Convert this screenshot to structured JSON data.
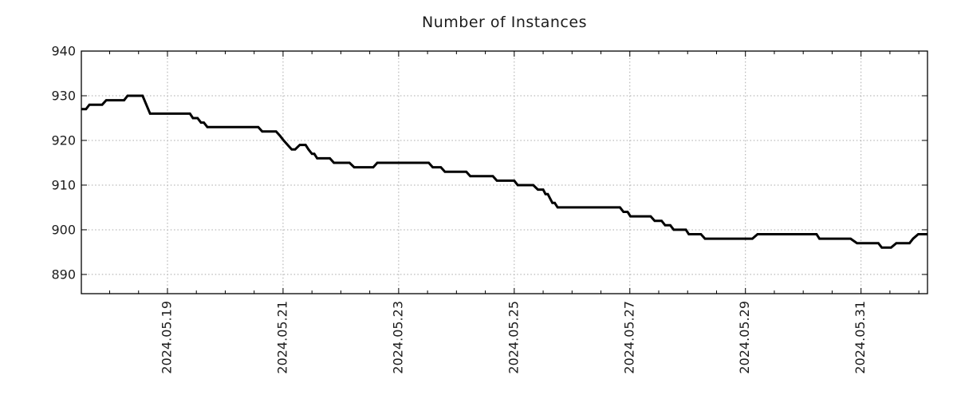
{
  "chart_data": {
    "type": "line",
    "title": "Number of Instances",
    "xlabel": "",
    "ylabel": "",
    "grid": true,
    "legend_position": "none",
    "x_axis": {
      "unit": "days relative to 2024-05-19 00:00",
      "range": [
        -1.49,
        13.15
      ],
      "major_ticks": [
        {
          "t": 0,
          "label": "2024.05.19"
        },
        {
          "t": 2,
          "label": "2024.05.21"
        },
        {
          "t": 4,
          "label": "2024.05.23"
        },
        {
          "t": 6,
          "label": "2024.05.25"
        },
        {
          "t": 8,
          "label": "2024.05.27"
        },
        {
          "t": 10,
          "label": "2024.05.29"
        },
        {
          "t": 12,
          "label": "2024.05.31"
        }
      ],
      "minor_tick_step": 0.5
    },
    "y_axis": {
      "range": [
        885.7,
        940
      ],
      "ticks": [
        890,
        900,
        910,
        920,
        930,
        940
      ]
    },
    "series": [
      {
        "name": "Number of Instances",
        "color": "#000000",
        "points": [
          [
            -1.49,
            927
          ],
          [
            -1.41,
            927
          ],
          [
            -1.35,
            928
          ],
          [
            -1.13,
            928
          ],
          [
            -1.06,
            929
          ],
          [
            -0.75,
            929
          ],
          [
            -0.69,
            930
          ],
          [
            -0.43,
            930
          ],
          [
            -0.3,
            926
          ],
          [
            0.39,
            926
          ],
          [
            0.44,
            925
          ],
          [
            0.52,
            925
          ],
          [
            0.58,
            924
          ],
          [
            0.63,
            924
          ],
          [
            0.69,
            923
          ],
          [
            1.57,
            923
          ],
          [
            1.64,
            922
          ],
          [
            1.88,
            922
          ],
          [
            1.95,
            921
          ],
          [
            2.01,
            920
          ],
          [
            2.08,
            919
          ],
          [
            2.15,
            918
          ],
          [
            2.21,
            918
          ],
          [
            2.29,
            919
          ],
          [
            2.39,
            919
          ],
          [
            2.44,
            918
          ],
          [
            2.5,
            917
          ],
          [
            2.54,
            917
          ],
          [
            2.59,
            916
          ],
          [
            2.81,
            916
          ],
          [
            2.88,
            915
          ],
          [
            3.15,
            915
          ],
          [
            3.23,
            914
          ],
          [
            3.56,
            914
          ],
          [
            3.63,
            915
          ],
          [
            4.52,
            915
          ],
          [
            4.59,
            914
          ],
          [
            4.73,
            914
          ],
          [
            4.8,
            913
          ],
          [
            5.17,
            913
          ],
          [
            5.24,
            912
          ],
          [
            5.63,
            912
          ],
          [
            5.7,
            911
          ],
          [
            6.0,
            911
          ],
          [
            6.06,
            910
          ],
          [
            6.33,
            910
          ],
          [
            6.41,
            909
          ],
          [
            6.5,
            909
          ],
          [
            6.54,
            908
          ],
          [
            6.58,
            908
          ],
          [
            6.62,
            907
          ],
          [
            6.66,
            906
          ],
          [
            6.7,
            906
          ],
          [
            6.75,
            905
          ],
          [
            7.83,
            905
          ],
          [
            7.89,
            904
          ],
          [
            7.96,
            904
          ],
          [
            8.01,
            903
          ],
          [
            8.36,
            903
          ],
          [
            8.43,
            902
          ],
          [
            8.55,
            902
          ],
          [
            8.61,
            901
          ],
          [
            8.7,
            901
          ],
          [
            8.76,
            900
          ],
          [
            8.97,
            900
          ],
          [
            9.02,
            899
          ],
          [
            9.23,
            899
          ],
          [
            9.3,
            898
          ],
          [
            10.12,
            898
          ],
          [
            10.21,
            899
          ],
          [
            11.23,
            899
          ],
          [
            11.28,
            898
          ],
          [
            11.82,
            898
          ],
          [
            11.93,
            897
          ],
          [
            12.3,
            897
          ],
          [
            12.36,
            896
          ],
          [
            12.52,
            896
          ],
          [
            12.61,
            897
          ],
          [
            12.84,
            897
          ],
          [
            12.9,
            898
          ],
          [
            12.99,
            899
          ],
          [
            13.15,
            899
          ]
        ]
      }
    ],
    "colors": {
      "line": "#000000",
      "grid": "#a8a8a8",
      "axis": "#000000",
      "text": "#1c1c1c",
      "background": "#ffffff"
    }
  }
}
